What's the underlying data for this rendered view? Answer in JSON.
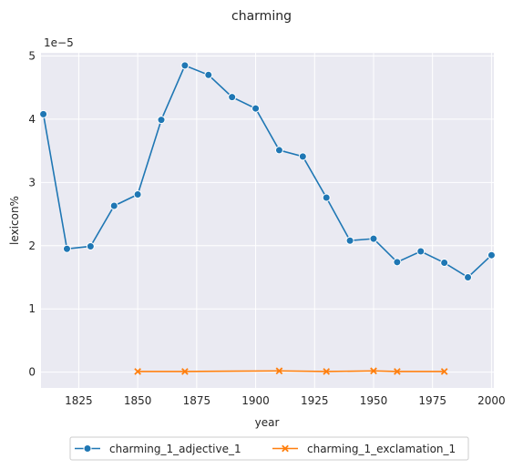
{
  "chart_data": {
    "type": "line",
    "title": "charming",
    "xlabel": "year",
    "ylabel": "lexicon%",
    "y_offset_label": "1e−5",
    "xlim": [
      1809,
      2001
    ],
    "ylim": [
      -0.25,
      5.05
    ],
    "x_ticks": [
      "1825",
      "1850",
      "1875",
      "1900",
      "1925",
      "1950",
      "1975",
      "2000"
    ],
    "y_ticks": [
      "0",
      "1",
      "2",
      "3",
      "4",
      "5"
    ],
    "grid": true,
    "background": "#eaeaf2",
    "legend_position": "bottom-center",
    "series": [
      {
        "name": "charming_1_adjective_1",
        "color": "#1f77b4",
        "marker": "circle",
        "x": [
          1810,
          1820,
          1830,
          1840,
          1850,
          1860,
          1870,
          1880,
          1890,
          1900,
          1910,
          1920,
          1930,
          1940,
          1950,
          1960,
          1970,
          1980,
          1990,
          2000
        ],
        "y": [
          4.08,
          1.95,
          1.99,
          2.63,
          2.81,
          3.99,
          4.85,
          4.7,
          4.35,
          4.17,
          3.51,
          3.41,
          2.76,
          2.08,
          2.11,
          1.74,
          1.91,
          1.73,
          1.5,
          1.85
        ]
      },
      {
        "name": "charming_1_exclamation_1",
        "color": "#ff7f0e",
        "marker": "x",
        "x": [
          1850,
          1870,
          1910,
          1930,
          1950,
          1960,
          1980
        ],
        "y": [
          0.01,
          0.01,
          0.02,
          0.01,
          0.02,
          0.01,
          0.01
        ]
      }
    ]
  }
}
